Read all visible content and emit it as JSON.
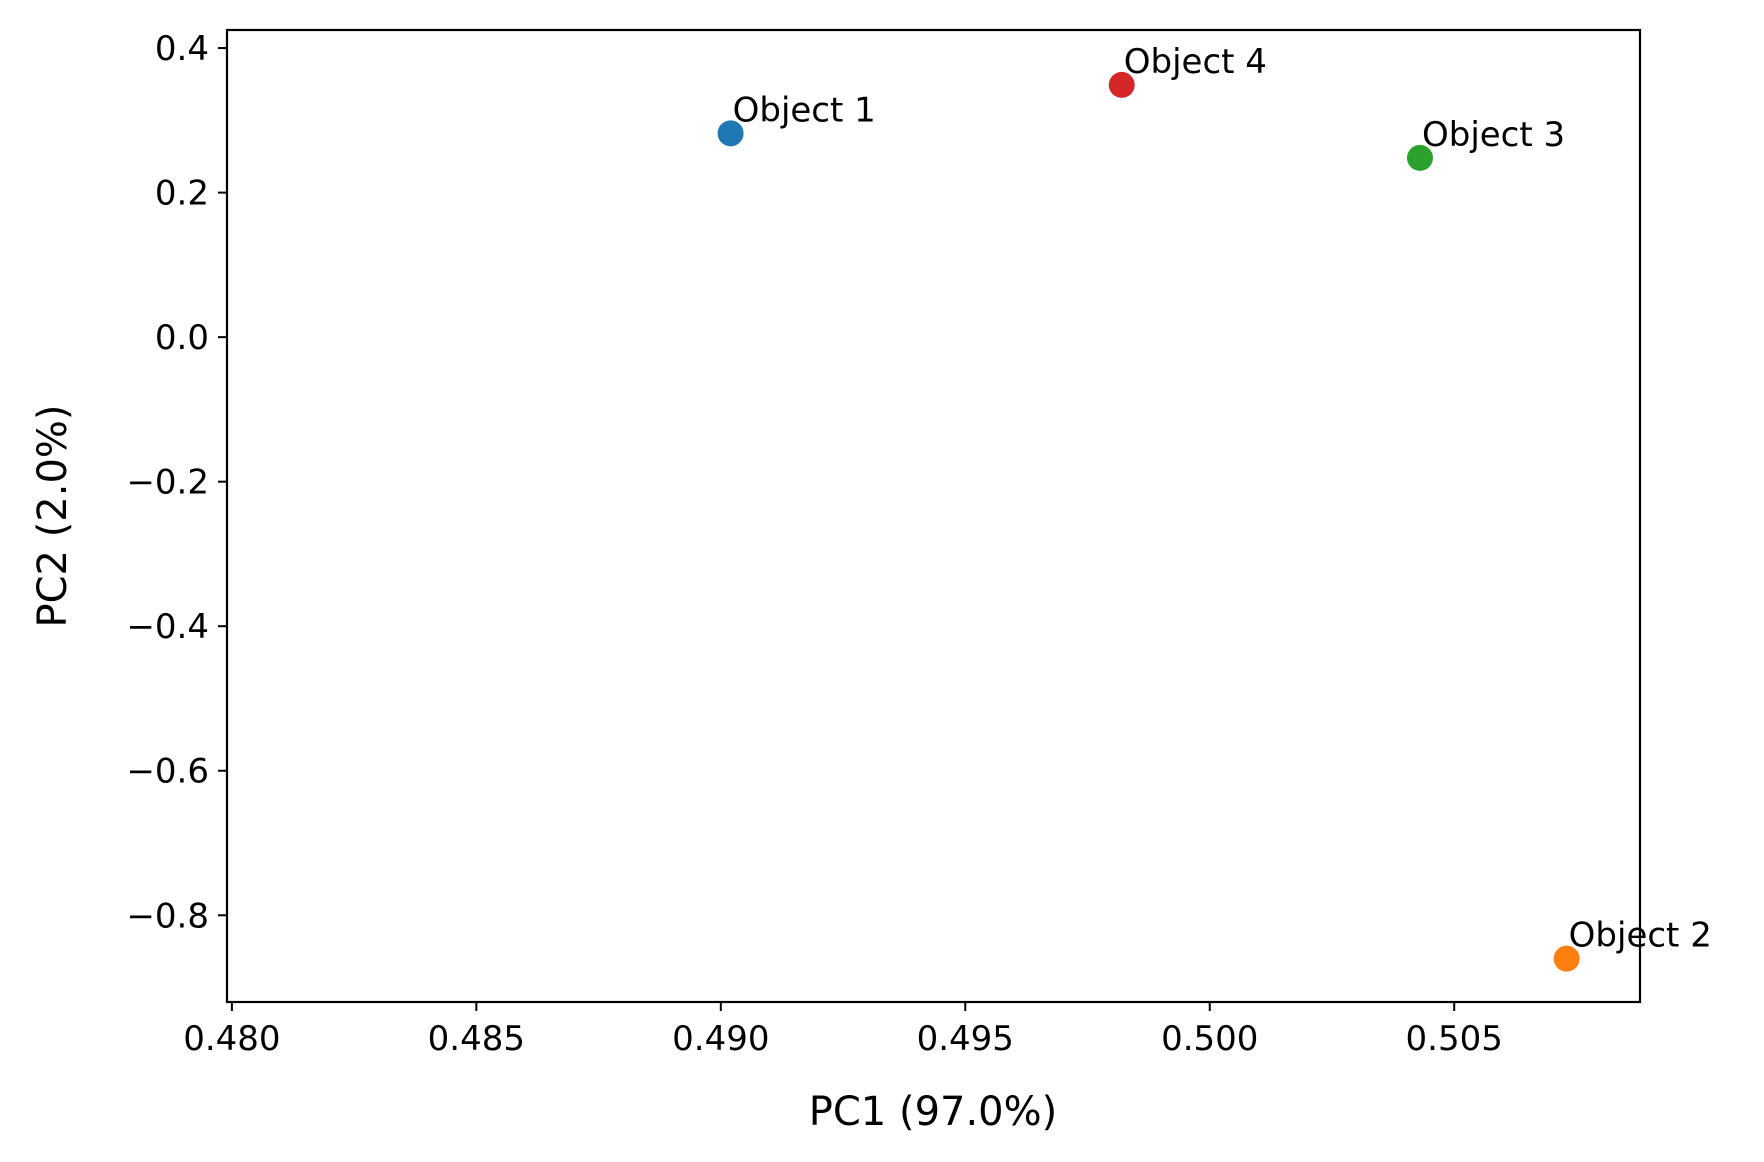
{
  "chart_data": {
    "type": "scatter",
    "title": "",
    "xlabel": "PC1 (97.0%)",
    "ylabel": "PC2 (2.0%)",
    "xlim": [
      0.4799,
      0.5088
    ],
    "ylim": [
      -0.92,
      0.425
    ],
    "xticks": [
      {
        "value": 0.48,
        "label": "0.480"
      },
      {
        "value": 0.485,
        "label": "0.485"
      },
      {
        "value": 0.49,
        "label": "0.490"
      },
      {
        "value": 0.495,
        "label": "0.495"
      },
      {
        "value": 0.5,
        "label": "0.500"
      },
      {
        "value": 0.505,
        "label": "0.505"
      }
    ],
    "yticks": [
      {
        "value": 0.4,
        "label": "0.4"
      },
      {
        "value": 0.2,
        "label": "0.2"
      },
      {
        "value": 0.0,
        "label": "0.0"
      },
      {
        "value": -0.2,
        "label": "−0.2"
      },
      {
        "value": -0.4,
        "label": "−0.4"
      },
      {
        "value": -0.6,
        "label": "−0.6"
      },
      {
        "value": -0.8,
        "label": "−0.8"
      }
    ],
    "grid": false,
    "points": [
      {
        "label": "Object 1",
        "x": 0.4902,
        "y": 0.282,
        "color": "#1f77b4"
      },
      {
        "label": "Object 2",
        "x": 0.5073,
        "y": -0.86,
        "color": "#ff7f0e"
      },
      {
        "label": "Object 3",
        "x": 0.5043,
        "y": 0.248,
        "color": "#2ca02c"
      },
      {
        "label": "Object 4",
        "x": 0.4982,
        "y": 0.349,
        "color": "#d62728"
      }
    ]
  }
}
